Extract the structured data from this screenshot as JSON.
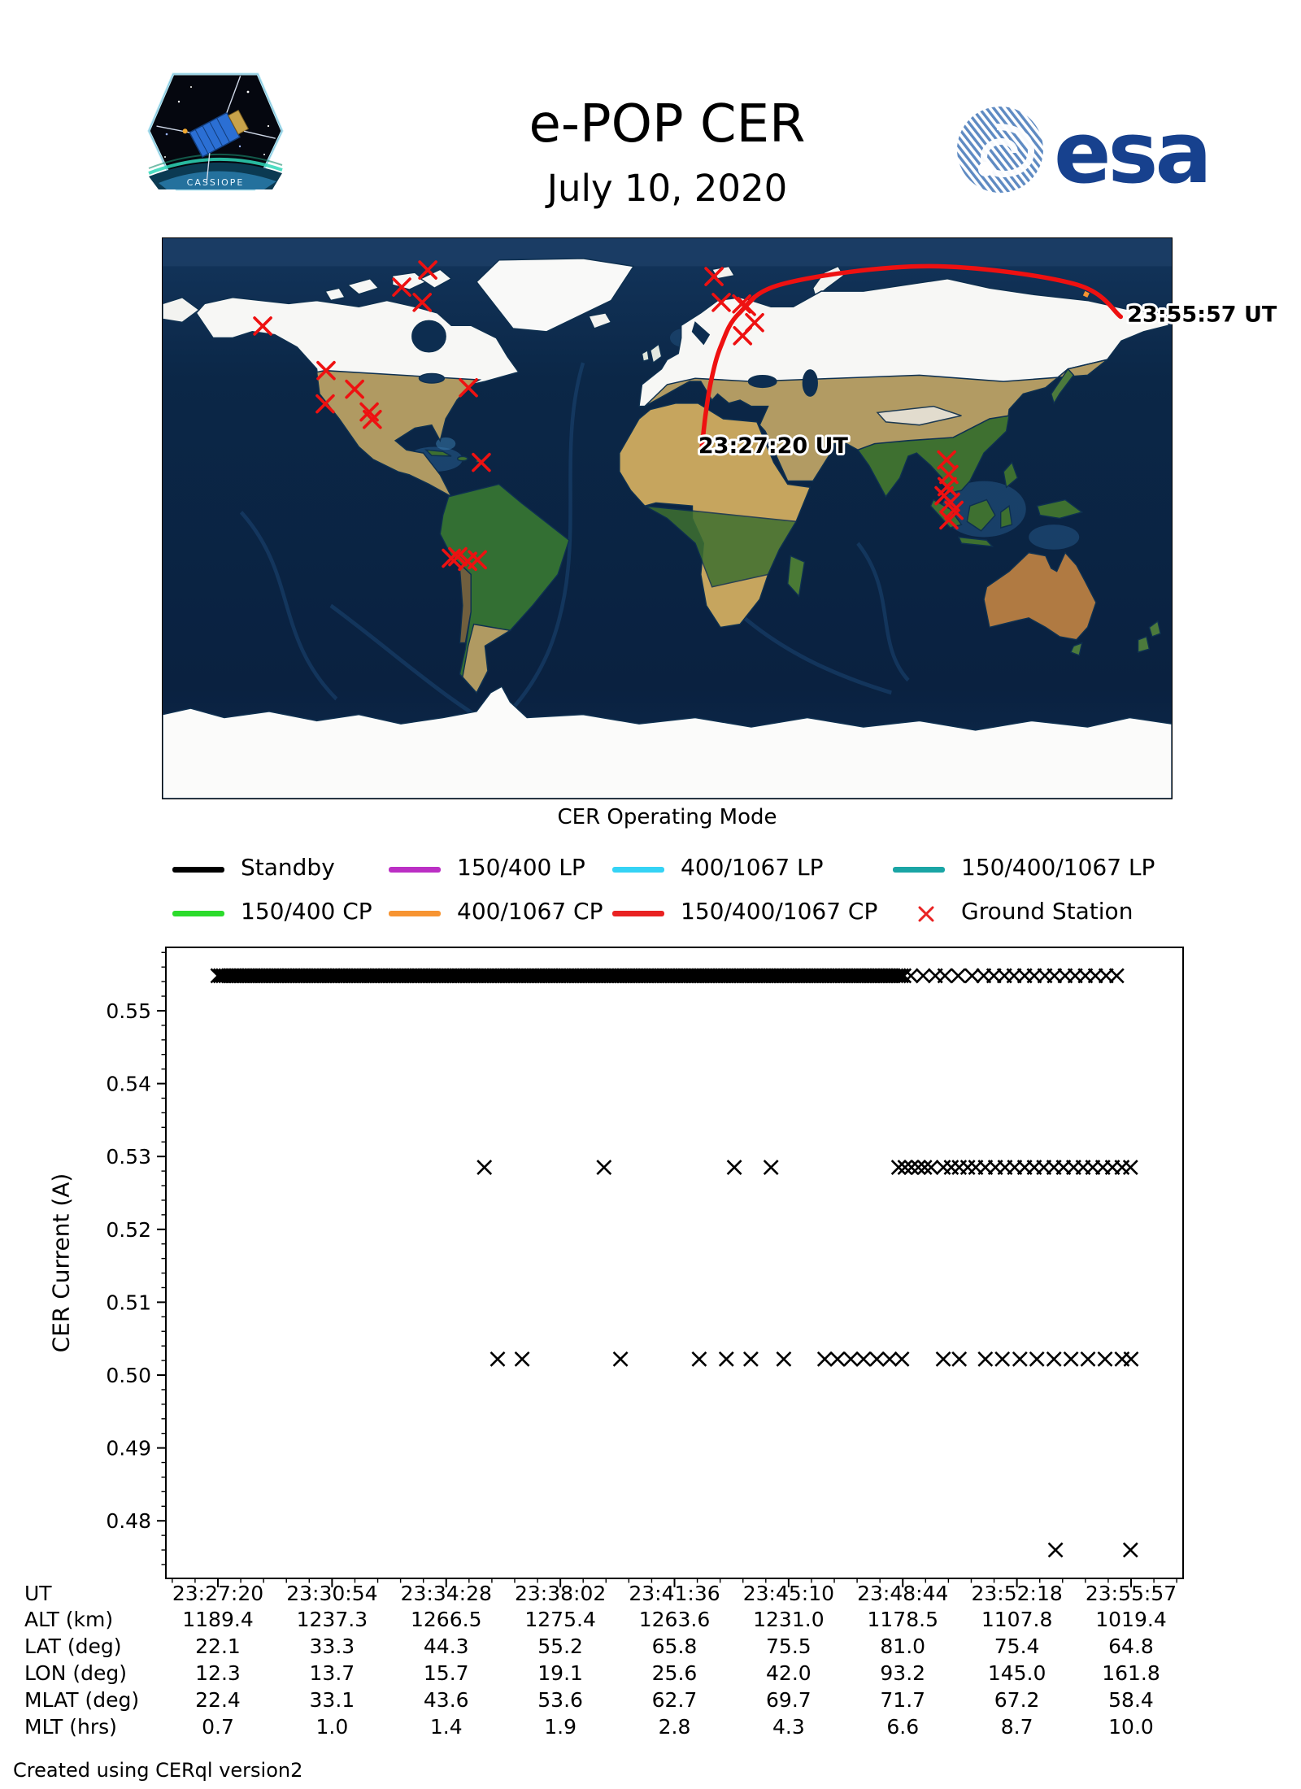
{
  "header": {
    "title": "e-POP CER",
    "date": "July 10, 2020",
    "patch_text": "CASSIOPE",
    "esa_wordmark": "esa"
  },
  "map": {
    "start_time_label": "23:27:20 UT",
    "end_time_label": "23:55:57 UT",
    "track_color": "#ee1111",
    "track_lonlat": [
      [
        12.3,
        22.1
      ],
      [
        13.7,
        33.3
      ],
      [
        15.7,
        44.3
      ],
      [
        19.1,
        55.2
      ],
      [
        25.6,
        65.8
      ],
      [
        42.0,
        75.5
      ],
      [
        93.2,
        81.0
      ],
      [
        145.0,
        75.4
      ],
      [
        161.8,
        64.8
      ]
    ],
    "track_mode_tick": {
      "lon": 149.5,
      "lat": 72.0,
      "color": "#f79432"
    },
    "ground_station_color": "#ee1111",
    "ground_stations_lonlat": [
      [
        -85.4,
        79.8
      ],
      [
        -94.7,
        74.3
      ],
      [
        -87.4,
        69.4
      ],
      [
        -144.3,
        61.8
      ],
      [
        -121.7,
        47.5
      ],
      [
        -111.5,
        41.5
      ],
      [
        -122.0,
        36.8
      ],
      [
        -106.3,
        34.2
      ],
      [
        -105.2,
        31.8
      ],
      [
        -70.9,
        42.0
      ],
      [
        -66.3,
        18.0
      ],
      [
        16.7,
        77.7
      ],
      [
        19.3,
        69.4
      ],
      [
        26.6,
        68.9
      ],
      [
        28.3,
        68.1
      ],
      [
        31.2,
        62.9
      ],
      [
        26.9,
        58.7
      ],
      [
        99.7,
        18.8
      ],
      [
        100.5,
        14.1
      ],
      [
        99.9,
        10.2
      ],
      [
        98.8,
        7.3
      ],
      [
        101.1,
        5.2
      ],
      [
        102.3,
        2.6
      ],
      [
        100.5,
        -0.5
      ],
      [
        -77.0,
        -12.8
      ],
      [
        -74.7,
        -12.3
      ],
      [
        -71.2,
        -13.8
      ],
      [
        -67.7,
        -13.3
      ]
    ]
  },
  "legend": {
    "title": "CER Operating Mode",
    "items": [
      {
        "label": "Standby",
        "color": "#000000",
        "marker": "line"
      },
      {
        "label": "150/400 LP",
        "color": "#bb2fc4",
        "marker": "line"
      },
      {
        "label": "400/1067 LP",
        "color": "#35d3f5",
        "marker": "line"
      },
      {
        "label": "150/400/1067 LP",
        "color": "#1aa5a5",
        "marker": "line"
      },
      {
        "label": "150/400 CP",
        "color": "#2bdb2b",
        "marker": "line"
      },
      {
        "label": "400/1067 CP",
        "color": "#f79432",
        "marker": "line"
      },
      {
        "label": "150/400/1067 CP",
        "color": "#e92222",
        "marker": "line"
      },
      {
        "label": "Ground Station",
        "color": "#e92222",
        "marker": "x"
      }
    ]
  },
  "chart_data": {
    "type": "scatter",
    "title": "",
    "xlabel": "UT",
    "ylabel": "CER Current (A)",
    "marker": "x",
    "marker_color": "#000000",
    "x_total_seconds": 1717,
    "x_tick_labels": [
      "23:27:20",
      "23:30:54",
      "23:34:28",
      "23:38:02",
      "23:41:36",
      "23:45:10",
      "23:48:44",
      "23:52:18",
      "23:55:57"
    ],
    "ylim": [
      0.4721,
      0.5587
    ],
    "y_ticks": [
      0.55,
      0.54,
      0.53,
      0.52,
      0.51,
      0.5,
      0.49,
      0.48
    ],
    "grid": false,
    "series": [
      {
        "name": "standby-current",
        "value": 0.5548,
        "dense_range": {
          "t0": 0,
          "t1": 1292,
          "step": 5
        },
        "points_t": [
          1303,
          1326,
          1349,
          1367,
          1392,
          1418,
          1440,
          1459,
          1479,
          1497,
          1517,
          1535,
          1555,
          1573,
          1593,
          1612,
          1631,
          1650,
          1670,
          1690
        ]
      },
      {
        "name": "mode-current-0.5285",
        "value": 0.5285,
        "points_t": [
          501,
          726,
          971,
          1040,
          1280,
          1292,
          1304,
          1317,
          1329,
          1341,
          1364,
          1379,
          1394,
          1410,
          1425,
          1443,
          1462,
          1480,
          1498,
          1517,
          1535,
          1553,
          1572,
          1590,
          1609,
          1627,
          1645,
          1664,
          1682,
          1700,
          1716
        ]
      },
      {
        "name": "mode-current-0.5022",
        "value": 0.5022,
        "points_t": [
          526,
          572,
          757,
          905,
          956,
          1002,
          1064,
          1141,
          1165,
          1190,
          1214,
          1239,
          1263,
          1286,
          1364,
          1394,
          1443,
          1475,
          1508,
          1540,
          1572,
          1604,
          1636,
          1668,
          1700,
          1717
        ]
      },
      {
        "name": "mode-current-0.476",
        "value": 0.476,
        "points_t": [
          1575,
          1716
        ]
      }
    ]
  },
  "table": {
    "rows": [
      {
        "label": "UT",
        "values": [
          "23:27:20",
          "23:30:54",
          "23:34:28",
          "23:38:02",
          "23:41:36",
          "23:45:10",
          "23:48:44",
          "23:52:18",
          "23:55:57"
        ]
      },
      {
        "label": "ALT (km)",
        "values": [
          "1189.4",
          "1237.3",
          "1266.5",
          "1275.4",
          "1263.6",
          "1231.0",
          "1178.5",
          "1107.8",
          "1019.4"
        ]
      },
      {
        "label": "LAT (deg)",
        "values": [
          "22.1",
          "33.3",
          "44.3",
          "55.2",
          "65.8",
          "75.5",
          "81.0",
          "75.4",
          "64.8"
        ]
      },
      {
        "label": "LON (deg)",
        "values": [
          "12.3",
          "13.7",
          "15.7",
          "19.1",
          "25.6",
          "42.0",
          "93.2",
          "145.0",
          "161.8"
        ]
      },
      {
        "label": "MLAT (deg)",
        "values": [
          "22.4",
          "33.1",
          "43.6",
          "53.6",
          "62.7",
          "69.7",
          "71.7",
          "67.2",
          "58.4"
        ]
      },
      {
        "label": "MLT (hrs)",
        "values": [
          "0.7",
          "1.0",
          "1.4",
          "1.9",
          "2.8",
          "4.3",
          "6.6",
          "8.7",
          "10.0"
        ]
      }
    ]
  },
  "footer": "Created using CERql version2"
}
